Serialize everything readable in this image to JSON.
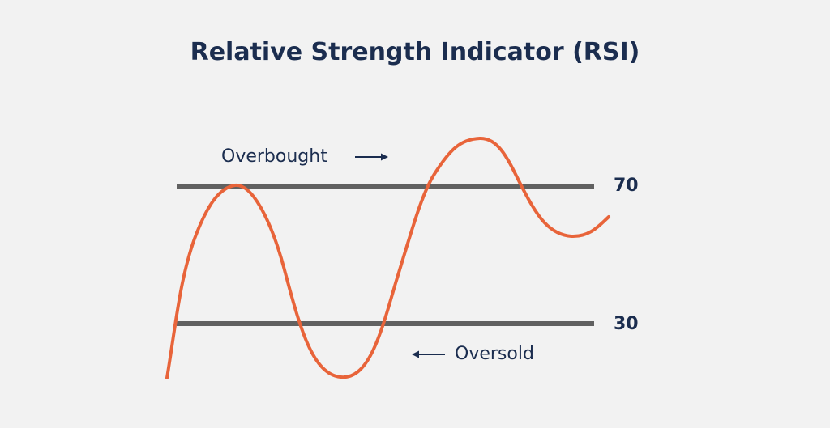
{
  "title": "Relative Strength Indicator (RSI)",
  "levels": {
    "upper": "70",
    "lower": "30"
  },
  "annotations": {
    "overbought": "Overbought",
    "oversold": "Oversold"
  },
  "colors": {
    "background": "#f2f2f2",
    "text": "#1b2d4f",
    "threshold_line": "#616161",
    "rsi_line": "#e8643a"
  },
  "icons": {
    "overbought_arrow": "arrow-right-icon",
    "oversold_arrow": "arrow-left-icon"
  }
}
